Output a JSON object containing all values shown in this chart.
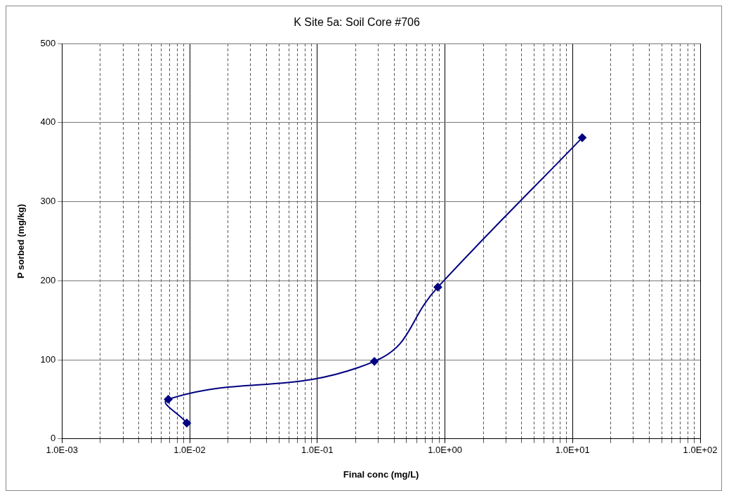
{
  "chart_data": {
    "type": "line",
    "title": "K Site 5a: Soil Core #706",
    "xlabel": "Final conc (mg/L)",
    "ylabel": "P sorbed (mg/kg)",
    "x": [
      0.0095,
      0.0068,
      0.28,
      0.88,
      11.9
    ],
    "series": [
      {
        "color": "#000080",
        "values": [
          20,
          50,
          98,
          192,
          381
        ]
      }
    ],
    "log": "x",
    "marker": "diamond",
    "line_style": "solid",
    "grid": true,
    "legend": false,
    "xlim": [
      0.001,
      100
    ],
    "ylim": [
      0,
      500
    ],
    "yticks": [
      0,
      100,
      200,
      300,
      400,
      500
    ],
    "xticks": [
      {
        "value": 0.001,
        "label": "1.0E-03"
      },
      {
        "value": 0.002,
        "label": null
      },
      {
        "value": 0.003,
        "label": null
      },
      {
        "value": 0.004,
        "label": null
      },
      {
        "value": 0.005,
        "label": null
      },
      {
        "value": 0.006,
        "label": null
      },
      {
        "value": 0.007,
        "label": null
      },
      {
        "value": 0.008,
        "label": null
      },
      {
        "value": 0.009,
        "label": null
      },
      {
        "value": 0.01,
        "label": "1.0E-02"
      },
      {
        "value": 0.02,
        "label": null
      },
      {
        "value": 0.03,
        "label": null
      },
      {
        "value": 0.04,
        "label": null
      },
      {
        "value": 0.05,
        "label": null
      },
      {
        "value": 0.06,
        "label": null
      },
      {
        "value": 0.07,
        "label": null
      },
      {
        "value": 0.08,
        "label": null
      },
      {
        "value": 0.09,
        "label": null
      },
      {
        "value": 0.1,
        "label": "1.0E-01"
      },
      {
        "value": 0.2,
        "label": null
      },
      {
        "value": 0.3,
        "label": null
      },
      {
        "value": 0.4,
        "label": null
      },
      {
        "value": 0.5,
        "label": null
      },
      {
        "value": 0.6,
        "label": null
      },
      {
        "value": 0.7,
        "label": null
      },
      {
        "value": 0.8,
        "label": null
      },
      {
        "value": 0.9,
        "label": null
      },
      {
        "value": 1,
        "label": "1.0E+00"
      },
      {
        "value": 2,
        "label": null
      },
      {
        "value": 3,
        "label": null
      },
      {
        "value": 4,
        "label": null
      },
      {
        "value": 5,
        "label": null
      },
      {
        "value": 6,
        "label": null
      },
      {
        "value": 7,
        "label": null
      },
      {
        "value": 8,
        "label": null
      },
      {
        "value": 9,
        "label": null
      },
      {
        "value": 10,
        "label": "1.0E+01"
      },
      {
        "value": 20,
        "label": null
      },
      {
        "value": 30,
        "label": null
      },
      {
        "value": 40,
        "label": null
      },
      {
        "value": 50,
        "label": null
      },
      {
        "value": 60,
        "label": null
      },
      {
        "value": 70,
        "label": null
      },
      {
        "value": 80,
        "label": null
      },
      {
        "value": 90,
        "label": null
      },
      {
        "value": 100,
        "label": "1.0E+02"
      }
    ]
  }
}
